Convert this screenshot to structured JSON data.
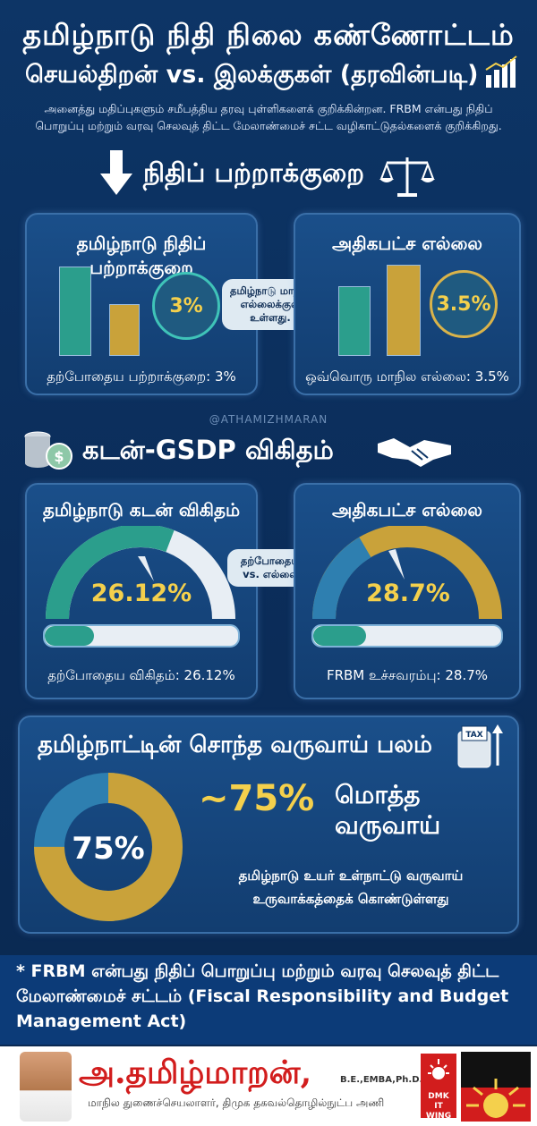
{
  "header": {
    "title": "தமிழ்நாடு நிதி நிலை கண்ணோட்டம்",
    "subtitle": "செயல்திறன் vs. இலக்குகள் (தரவின்படி)",
    "description_line1": "அனைத்து மதிப்புகளும் சமீபத்திய தரவு புள்ளிகளைக் குறிக்கின்றன. FRBM என்பது நிதிப்",
    "description_line2": "பொறுப்பு மற்றும் வரவு செலவுத் திட்ட மேலாண்மைச் சட்ட வழிகாட்டுதல்களைக் குறிக்கிறது."
  },
  "deficit": {
    "heading": "நிதிப் பற்றாக்குறை",
    "left_card": {
      "title": "தமிழ்நாடு நிதிப் பற்றாக்குறை",
      "value": "3%",
      "footer": "தற்போதைய பற்றாக்குறை: 3%"
    },
    "right_card": {
      "title": "அதிகபட்ச எல்லை",
      "value": "3.5%",
      "footer": "ஒவ்வொரு மாநில எல்லை: 3.5%"
    },
    "middle_note": "தமிழ்நாடு மாநில எல்லைக்குள் உள்ளது."
  },
  "watermark": "@ATHAMIZHMARAN",
  "debt": {
    "heading": "கடன்-GSDP விகிதம்",
    "left_card": {
      "title": "தமிழ்நாடு கடன் விகிதம்",
      "value": "26.12%",
      "footer": "தற்போதைய விகிதம்: 26.12%",
      "fill_fraction": 0.2612
    },
    "right_card": {
      "title": "அதிகபட்ச எல்லை",
      "value": "28.7%",
      "footer": "FRBM உச்சவரம்பு: 28.7%",
      "fill_fraction": 0.287
    },
    "middle_note": "தற்போதைய vs. எல்லை"
  },
  "revenue": {
    "heading": "தமிழ்நாட்டின் சொந்த வருவாய் பலம்",
    "donut_value": "75%",
    "donut_fraction": 0.75,
    "big_value": "~75%",
    "big_label_1": "மொத்த",
    "big_label_2": "வருவாய்",
    "desc_line1": "தமிழ்நாடு உயர் உள்நாட்டு வருவாய்",
    "desc_line2": "உருவாக்கத்தைக் கொண்டுள்ளது",
    "tax_label": "TAX"
  },
  "note": {
    "text": "* FRBM என்பது நிதிப் பொறுப்பு மற்றும் வரவு செலவுத் திட்ட மேலாண்மைச் சட்டம் (Fiscal Responsibility and Budget Management Act)"
  },
  "footer": {
    "name": "அ.தமிழ்மாறன்,",
    "degrees": "B.E.,EMBA,Ph.D.",
    "role": "மாநில துணைச்செயலாளர், திமுக தகவல்தொழில்நுட்ப அணி",
    "logo_text": "DMK IT WING"
  },
  "colors": {
    "background": "#0b2d5a",
    "teal": "#2b9e8c",
    "gold": "#c9a23a",
    "accent_yellow": "#f4d04c"
  }
}
